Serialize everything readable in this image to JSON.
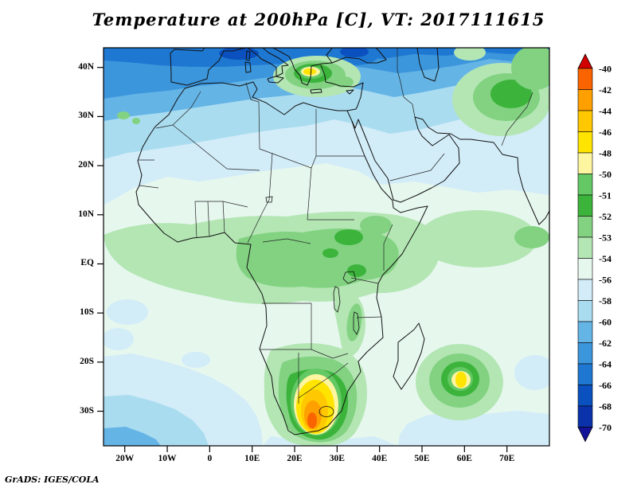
{
  "title": "Temperature at 200hPa [C], VT: 2017111615",
  "credit": "GrADS: IGES/COLA",
  "axes": {
    "lat_ticks": [
      "40N",
      "30N",
      "20N",
      "10N",
      "EQ",
      "10S",
      "20S",
      "30S"
    ],
    "lon_ticks": [
      "20W",
      "10W",
      "0",
      "10E",
      "20E",
      "30E",
      "40E",
      "50E",
      "60E",
      "70E"
    ]
  },
  "colorbar": {
    "orientation": "vertical-right",
    "labels": [
      "-40",
      "-42",
      "-44",
      "-46",
      "-48",
      "-50",
      "-51",
      "-52",
      "-53",
      "-54",
      "-56",
      "-58",
      "-60",
      "-62",
      "-64",
      "-66",
      "-68",
      "-70"
    ],
    "colors": [
      "#d40000",
      "#fa6400",
      "#ffa000",
      "#ffc800",
      "#ffe400",
      "#fdf5a0",
      "#64c864",
      "#3cb43c",
      "#82d282",
      "#b4e6b4",
      "#e6f7ee",
      "#d2ecf8",
      "#aadcf0",
      "#64b4e6",
      "#3c96dc",
      "#1e78d2",
      "#0a50be",
      "#0a32aa",
      "#14149b"
    ],
    "note": "colors[0]=arrow above -40 (warmest), colors[1..17]=fill between successive labels, colors[18]=arrow below -70 (coldest)"
  },
  "chart_data": {
    "type": "heatmap",
    "subtype": "filled-contour-map",
    "title": "Temperature at 200hPa [C], VT: 2017111615",
    "variable": "Temperature",
    "level": "200hPa",
    "units": "C",
    "valid_time": "2017111615",
    "region": "Africa, Mediterranean, Arabia and western Indian Ocean",
    "lon_ticks": [
      "20W",
      "10W",
      "0",
      "10E",
      "20E",
      "30E",
      "40E",
      "50E",
      "60E",
      "70E"
    ],
    "lat_ticks": [
      "40N",
      "30N",
      "20N",
      "10N",
      "EQ",
      "10S",
      "20S",
      "30S"
    ],
    "contour_levels": [
      -70,
      -68,
      -66,
      -64,
      -62,
      -60,
      -58,
      -56,
      -54,
      -53,
      -52,
      -51,
      -50,
      -48,
      -46,
      -44,
      -42,
      -40
    ],
    "legend_position": "right",
    "grid": false,
    "features": [
      {
        "area": "North of 25N over Europe / Mediterranean",
        "value_c": "-56 to -66, colder (darker blue) toward 40N and the top edge"
      },
      {
        "area": "Aegean / Turkey (~25E, 38N)",
        "value_c": "warm pocket -44 to -50 (yellow core inside green ring)"
      },
      {
        "area": "NW India / Pakistan (~70E, 32N)",
        "value_c": "-51 to -53 green maximum"
      },
      {
        "area": "Equatorial Africa band (10N to 8S)",
        "value_c": "-51 to -54 greens, darkest green -51/-52 near 30E"
      },
      {
        "area": "Subtropics 15N-20S background",
        "value_c": "-54 to -56 (pale mint)"
      },
      {
        "area": "Southern Africa (20-30E, 24-34S)",
        "value_c": "warm maximum -42 to -48 (orange/yellow core over South Africa, small closed contour near Lesotho)"
      },
      {
        "area": "SW Indian Ocean (~59E, 25S)",
        "value_c": "warm pocket -46 to -51 (yellow core in green ring)"
      },
      {
        "area": "Southern Ocean corners south of 30S",
        "value_c": "-56 to -62 blues"
      }
    ]
  }
}
